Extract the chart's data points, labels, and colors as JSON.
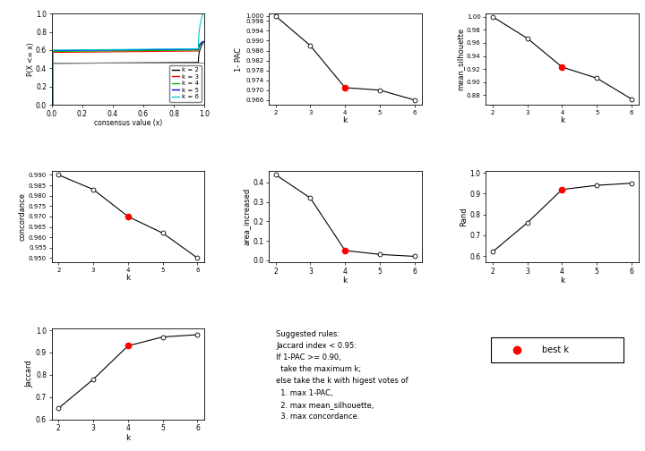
{
  "k": [
    2,
    3,
    4,
    5,
    6
  ],
  "one_minus_pac": [
    1.0,
    0.988,
    0.971,
    0.97,
    0.966
  ],
  "mean_silhouette": [
    1.0,
    0.967,
    0.923,
    0.906,
    0.874
  ],
  "concordance": [
    0.99,
    0.983,
    0.97,
    0.962,
    0.95
  ],
  "area_increased": [
    0.44,
    0.32,
    0.05,
    0.03,
    0.02
  ],
  "rand": [
    0.62,
    0.76,
    0.92,
    0.94,
    0.95
  ],
  "jaccard": [
    0.65,
    0.78,
    0.93,
    0.97,
    0.98
  ],
  "best_k": 4,
  "ecdf_colors": [
    "#000000",
    "#FF0000",
    "#00BB00",
    "#0000FF",
    "#00CCCC"
  ],
  "ecdf_k_labels": [
    "k = 2",
    "k = 3",
    "k = 4",
    "k = 5",
    "k = 6"
  ],
  "text_rules": "Suggested rules:\nJaccard index < 0.95:\nIf 1-PAC >= 0.90,\n  take the maximum k;\nelse take the k with higest votes of\n  1. max 1-PAC,\n  2. max mean_silhouette,\n  3. max concordance."
}
